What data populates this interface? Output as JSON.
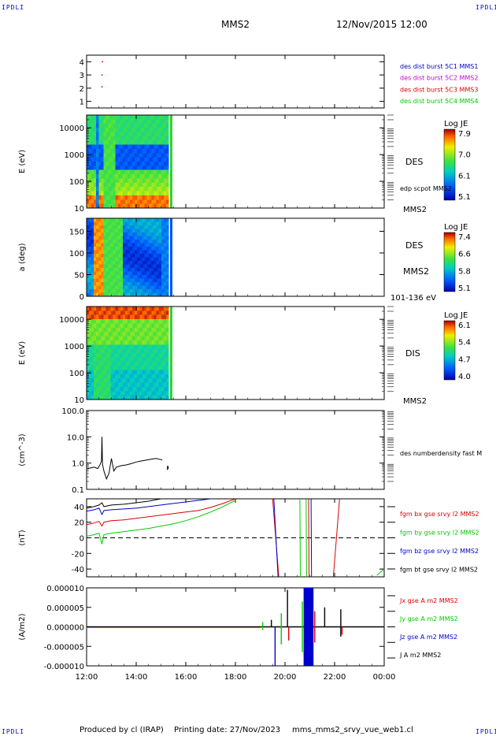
{
  "header": {
    "spacecraft": "MMS2",
    "datetime": "12/Nov/2015 12:00",
    "logo_left": "IPDLI",
    "logo_right": "IPDLI"
  },
  "footer": {
    "left": "Produced by cl (IRAP)",
    "middle": "Printing date: 27/Nov/2023",
    "right": "mms_mms2_srvy_vue_web1.cl",
    "logo_left": "IPDLI",
    "logo_right": "IPDLI"
  },
  "colors": {
    "black": "#000000",
    "red": "#dd0000",
    "green": "#00cc00",
    "blue": "#0000cc",
    "magenta": "#cc00cc"
  },
  "chart_data": [
    {
      "id": "burst",
      "type": "scatter",
      "ylabel": "",
      "ylim": [
        0.5,
        4.5
      ],
      "yticks": [
        "1",
        "2",
        "3",
        "4"
      ],
      "legend": [
        {
          "name": "des dist burst 5C1 MMS1",
          "color": "#0000cc"
        },
        {
          "name": "des dist burst 5C2 MMS2",
          "color": "#cc00cc"
        },
        {
          "name": "des dist burst 5C3 MMS3",
          "color": "#dd0000"
        },
        {
          "name": "des dist burst 5C4 MMS4",
          "color": "#00cc00"
        }
      ],
      "points": [
        {
          "x": 12.62,
          "y": 3.0
        },
        {
          "x": 12.62,
          "y": 2.1
        },
        {
          "x": 12.64,
          "y": 4.0
        }
      ]
    },
    {
      "id": "des-energy",
      "type": "heatmap",
      "ylabel": "E (eV)",
      "yscale": "log",
      "ylim": [
        10,
        30000
      ],
      "yticks": [
        "10",
        "100",
        "1000",
        "10000"
      ],
      "label": "DES",
      "side_note": "edp scpot MMS2",
      "corner_label": "MMS2",
      "colorbar": {
        "title": "Log JE",
        "ticks": [
          "7.9",
          "7.0",
          "6.1",
          "5.1"
        ],
        "min": 5.1,
        "max": 7.9
      },
      "data_xrange": [
        12.0,
        15.3
      ]
    },
    {
      "id": "des-pitch",
      "type": "heatmap",
      "ylabel": "a (deg)",
      "ylim": [
        0,
        180
      ],
      "yticks": [
        "0",
        "50",
        "100",
        "150"
      ],
      "label": "DES",
      "side_note": "MMS2",
      "corner_label": "101-136 eV",
      "colorbar": {
        "title": "Log JE",
        "ticks": [
          "7.4",
          "6.6",
          "5.8",
          "5.1"
        ],
        "min": 5.1,
        "max": 7.4
      },
      "data_xrange": [
        12.0,
        15.3
      ]
    },
    {
      "id": "dis-energy",
      "type": "heatmap",
      "ylabel": "E (eV)",
      "yscale": "log",
      "ylim": [
        10,
        30000
      ],
      "yticks": [
        "10",
        "100",
        "1000",
        "10000"
      ],
      "label": "DIS",
      "corner_label": "MMS2",
      "colorbar": {
        "title": "Log JE",
        "ticks": [
          "6.1",
          "5.4",
          "4.7",
          "4.0"
        ],
        "min": 4.0,
        "max": 6.1
      },
      "data_xrange": [
        12.0,
        15.3
      ]
    },
    {
      "id": "density",
      "type": "line",
      "ylabel": "(cm^-3)",
      "yscale": "log",
      "ylim": [
        0.1,
        100
      ],
      "yticks": [
        "0.1",
        "1.0",
        "10.0",
        "100.0"
      ],
      "legend": [
        {
          "name": "des numberdensity fast M",
          "color": "#000000"
        }
      ],
      "series": [
        {
          "name": "des numberdensity fast M",
          "color": "#000000",
          "x": [
            12.0,
            12.15,
            12.3,
            12.45,
            12.55,
            12.6,
            12.62,
            12.64,
            12.7,
            12.8,
            12.9,
            13.0,
            13.1,
            13.2,
            13.4,
            13.6,
            13.8,
            14.0,
            14.2,
            14.4,
            14.6,
            14.8,
            15.0,
            15.05
          ],
          "y": [
            0.6,
            0.65,
            0.7,
            0.62,
            0.9,
            1.2,
            10.0,
            0.9,
            0.5,
            0.25,
            0.4,
            1.5,
            0.5,
            0.7,
            0.8,
            0.85,
            0.95,
            1.1,
            1.2,
            1.3,
            1.4,
            1.5,
            1.35,
            1.3
          ]
        },
        {
          "name": "",
          "color": "#000000",
          "x": [
            15.25,
            15.27,
            15.3
          ],
          "y": [
            0.55,
            0.8,
            0.6
          ]
        }
      ]
    },
    {
      "id": "bfield",
      "type": "line",
      "ylabel": "(nT)",
      "ylim": [
        -50,
        50
      ],
      "yticks": [
        "-40",
        "-20",
        "0",
        "20",
        "40"
      ],
      "dashed_zero": true,
      "legend": [
        {
          "name": "fgm bx gse srvy l2 MMS2",
          "color": "#dd0000"
        },
        {
          "name": "fgm by gse srvy l2 MMS2",
          "color": "#00cc00"
        },
        {
          "name": "fgm bz gse srvy l2 MMS2",
          "color": "#0000cc"
        },
        {
          "name": "fgm bt gse srvy l2 MMS2",
          "color": "#000000"
        }
      ],
      "series": [
        {
          "name": "fgm bt gse srvy l2 MMS2",
          "color": "#000000",
          "x": [
            12.0,
            12.3,
            12.5,
            12.62,
            12.7,
            13.0,
            13.5,
            14.0,
            14.5,
            15.0,
            15.5
          ],
          "y": [
            38,
            40,
            42,
            45,
            40,
            42,
            43,
            45,
            47,
            50,
            52
          ]
        },
        {
          "name": "fgm bz gse srvy l2 MMS2",
          "color": "#0000cc",
          "x": [
            12.0,
            12.3,
            12.5,
            12.62,
            12.7,
            13.0,
            13.5,
            14.0,
            14.5,
            15.0,
            15.5,
            16.0,
            16.5,
            17.0
          ],
          "y": [
            34,
            36,
            38,
            30,
            35,
            36,
            37,
            38,
            40,
            42,
            44,
            46,
            48,
            50
          ]
        },
        {
          "name": "fgm bx gse srvy l2 MMS2",
          "color": "#dd0000",
          "x": [
            12.0,
            12.3,
            12.5,
            12.62,
            12.7,
            13.0,
            13.5,
            14.0,
            14.5,
            15.0,
            15.5,
            16.0,
            16.5,
            17.0,
            17.5,
            18.0
          ],
          "y": [
            17,
            19,
            21,
            15,
            20,
            22,
            23,
            25,
            27,
            29,
            31,
            33,
            35,
            39,
            44,
            50
          ]
        },
        {
          "name": "fgm by gse srvy l2 MMS2",
          "color": "#00cc00",
          "x": [
            12.0,
            12.3,
            12.5,
            12.62,
            12.7,
            13.0,
            13.5,
            14.0,
            14.5,
            15.0,
            15.5,
            16.0,
            16.5,
            17.0,
            17.5,
            18.0
          ],
          "y": [
            2,
            4,
            6,
            -8,
            4,
            6,
            8,
            10,
            12,
            15,
            18,
            22,
            27,
            33,
            40,
            48
          ]
        },
        {
          "name": "",
          "color": "#dd0000",
          "x": [
            19.5,
            19.75
          ],
          "y": [
            50,
            -50
          ]
        },
        {
          "name": "",
          "color": "#0000cc",
          "x": [
            19.55,
            19.72
          ],
          "y": [
            50,
            -50
          ]
        },
        {
          "name": "",
          "color": "#00cc00",
          "x": [
            20.6,
            20.62
          ],
          "y": [
            50,
            -50
          ]
        },
        {
          "name": "",
          "color": "#00cc00",
          "x": [
            20.85,
            20.87
          ],
          "y": [
            50,
            -50
          ]
        },
        {
          "name": "",
          "color": "#dd0000",
          "x": [
            20.95,
            20.97
          ],
          "y": [
            50,
            -50
          ]
        },
        {
          "name": "",
          "color": "#0000cc",
          "x": [
            21.05,
            21.07
          ],
          "y": [
            50,
            -50
          ]
        },
        {
          "name": "",
          "color": "#dd0000",
          "x": [
            21.95,
            22.2
          ],
          "y": [
            -50,
            50
          ]
        },
        {
          "name": "",
          "color": "#00cc00",
          "x": [
            23.7,
            24.0
          ],
          "y": [
            -48,
            -40
          ]
        }
      ]
    },
    {
      "id": "current",
      "type": "line",
      "ylabel": "(A/m2)",
      "ylim": [
        -1e-05,
        1e-05
      ],
      "yticks": [
        "-0.000010",
        "-0.000005",
        "0.000000",
        "0.000005",
        "0.000010"
      ],
      "legend": [
        {
          "name": "Jx gse A m2 MMS2",
          "color": "#dd0000"
        },
        {
          "name": "Jy gse A m2 MMS2",
          "color": "#00cc00"
        },
        {
          "name": "Jz gse A m2 MMS2",
          "color": "#0000cc"
        },
        {
          "name": "J A m2 MMS2",
          "color": "#000000"
        }
      ],
      "spikes": [
        {
          "x": 19.1,
          "ylo": -8e-07,
          "yhi": 1.2e-06,
          "color": "#00cc00"
        },
        {
          "x": 19.45,
          "ylo": 0.0,
          "yhi": 1.8e-06,
          "color": "#000000"
        },
        {
          "x": 19.6,
          "ylo": -1e-05,
          "yhi": 0.0,
          "color": "#0000cc"
        },
        {
          "x": 19.85,
          "ylo": -4.5e-06,
          "yhi": 3.5e-06,
          "color": "#00cc00"
        },
        {
          "x": 20.1,
          "ylo": 0.0,
          "yhi": 9.5e-06,
          "color": "#000000"
        },
        {
          "x": 20.15,
          "ylo": -3.5e-06,
          "yhi": 0.0,
          "color": "#dd0000"
        },
        {
          "x": 20.7,
          "ylo": -6.5e-06,
          "yhi": 6.5e-06,
          "color": "#00cc00"
        },
        {
          "x": 21.2,
          "ylo": -4e-06,
          "yhi": 4e-06,
          "color": "#dd0000"
        },
        {
          "x": 21.6,
          "ylo": 0.0,
          "yhi": 5e-06,
          "color": "#000000"
        },
        {
          "x": 22.25,
          "ylo": -2.5e-06,
          "yhi": 4.5e-06,
          "color": "#000000"
        },
        {
          "x": 22.3,
          "ylo": -2e-06,
          "yhi": 0.0,
          "color": "#dd0000"
        }
      ],
      "dense_band": {
        "x0": 20.75,
        "x1": 21.15,
        "color": "#0000cc"
      }
    }
  ],
  "xaxis": {
    "xlim": [
      12,
      24
    ],
    "ticks": [
      {
        "x": 12,
        "label": "12:00"
      },
      {
        "x": 14,
        "label": "14:00"
      },
      {
        "x": 16,
        "label": "16:00"
      },
      {
        "x": 18,
        "label": "18:00"
      },
      {
        "x": 20,
        "label": "20:00"
      },
      {
        "x": 22,
        "label": "22:00"
      },
      {
        "x": 24,
        "label": "00:00"
      }
    ]
  }
}
